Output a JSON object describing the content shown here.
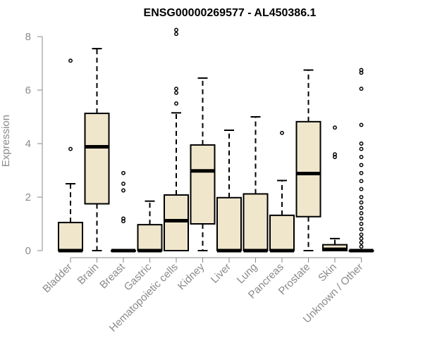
{
  "chart_data": {
    "type": "boxplot",
    "title": "ENSG00000269577 - AL450386.1",
    "xlabel": "",
    "ylabel": "Expression",
    "ylim": [
      0,
      8
    ],
    "yticks": [
      0,
      2,
      4,
      6,
      8
    ],
    "grid": false,
    "box_fill": "#efe6cc",
    "categories": [
      "Bladder",
      "Brain",
      "Breast",
      "Gastric",
      "Hematopoietic cells",
      "Kidney",
      "Liver",
      "Lung",
      "Pancreas",
      "Prostate",
      "Skin",
      "Unknown / Other"
    ],
    "boxes": [
      {
        "name": "Bladder",
        "min": 0,
        "q1": 0,
        "median": 0,
        "q3": 1.05,
        "max": 2.5,
        "outliers": [
          3.8,
          7.1
        ]
      },
      {
        "name": "Brain",
        "min": 0,
        "q1": 1.75,
        "median": 3.88,
        "q3": 5.13,
        "max": 7.55,
        "outliers": []
      },
      {
        "name": "Breast",
        "min": 0,
        "q1": 0,
        "median": 0,
        "q3": 0,
        "max": 0,
        "outliers": [
          1.1,
          1.2,
          2.25,
          2.5,
          2.9
        ]
      },
      {
        "name": "Gastric",
        "min": 0,
        "q1": 0,
        "median": 0,
        "q3": 0.97,
        "max": 1.85,
        "outliers": []
      },
      {
        "name": "Hematopoietic cells",
        "min": 0,
        "q1": 0,
        "median": 1.12,
        "q3": 2.08,
        "max": 5.15,
        "outliers": [
          5.5,
          5.9,
          6.05,
          8.1,
          8.25
        ]
      },
      {
        "name": "Kidney",
        "min": 0,
        "q1": 1.0,
        "median": 2.98,
        "q3": 3.95,
        "max": 6.45,
        "outliers": []
      },
      {
        "name": "Liver",
        "min": 0,
        "q1": 0,
        "median": 0,
        "q3": 1.98,
        "max": 4.5,
        "outliers": []
      },
      {
        "name": "Lung",
        "min": 0,
        "q1": 0,
        "median": 0,
        "q3": 2.12,
        "max": 5.0,
        "outliers": []
      },
      {
        "name": "Pancreas",
        "min": 0,
        "q1": 0,
        "median": 0,
        "q3": 1.32,
        "max": 2.62,
        "outliers": [
          4.4
        ]
      },
      {
        "name": "Prostate",
        "min": 0,
        "q1": 1.27,
        "median": 2.88,
        "q3": 4.82,
        "max": 6.75,
        "outliers": []
      },
      {
        "name": "Skin",
        "min": 0,
        "q1": 0,
        "median": 0.05,
        "q3": 0.22,
        "max": 0.45,
        "outliers": [
          3.5,
          3.6,
          4.6
        ]
      },
      {
        "name": "Unknown / Other",
        "min": 0,
        "q1": 0,
        "median": 0,
        "q3": 0,
        "max": 0,
        "outliers": [
          0.15,
          0.3,
          0.45,
          0.6,
          0.8,
          1.0,
          1.2,
          1.4,
          1.6,
          1.8,
          2.0,
          2.3,
          2.6,
          2.9,
          3.2,
          3.5,
          3.8,
          4.0,
          4.7,
          6.05,
          6.65,
          6.75
        ]
      }
    ]
  }
}
